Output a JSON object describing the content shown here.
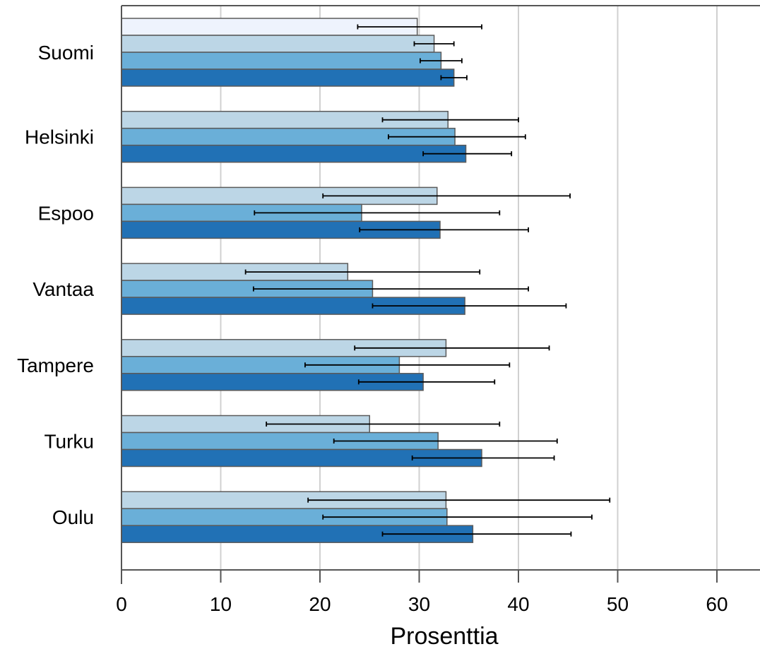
{
  "chart_data": {
    "type": "bar",
    "orientation": "horizontal",
    "xlabel": "Prosenttia",
    "xlim": [
      0,
      64
    ],
    "xticks": [
      0,
      10,
      20,
      30,
      40,
      50,
      60
    ],
    "grid": "vertical",
    "categories": [
      "Suomi",
      "Helsinki",
      "Espoo",
      "Vantaa",
      "Tampere",
      "Turku",
      "Oulu"
    ],
    "series": [
      {
        "color": "#eef3fd",
        "values": [
          29.8,
          null,
          null,
          null,
          null,
          null,
          null
        ],
        "error_low": [
          23.8,
          null,
          null,
          null,
          null,
          null,
          null
        ],
        "error_high": [
          36.3,
          null,
          null,
          null,
          null,
          null,
          null
        ]
      },
      {
        "color": "#bcd6e6",
        "values": [
          31.5,
          32.9,
          31.8,
          22.8,
          32.7,
          25.0,
          32.7
        ],
        "error_low": [
          29.5,
          26.3,
          20.3,
          12.5,
          23.5,
          14.6,
          18.8
        ],
        "error_high": [
          33.5,
          40.0,
          45.2,
          36.1,
          43.1,
          38.1,
          49.2
        ]
      },
      {
        "color": "#6aafd8",
        "values": [
          32.2,
          33.6,
          24.2,
          25.3,
          28.0,
          31.9,
          32.8
        ],
        "error_low": [
          30.1,
          26.9,
          13.4,
          13.3,
          18.5,
          21.4,
          20.3
        ],
        "error_high": [
          34.3,
          40.7,
          38.1,
          41.0,
          39.1,
          43.9,
          47.4
        ]
      },
      {
        "color": "#2171b5",
        "values": [
          33.5,
          34.7,
          32.1,
          34.6,
          30.4,
          36.3,
          35.4
        ],
        "error_low": [
          32.2,
          30.4,
          24.0,
          25.3,
          23.9,
          29.3,
          26.3
        ],
        "error_high": [
          34.8,
          39.3,
          41.0,
          44.8,
          37.6,
          43.6,
          45.3
        ]
      }
    ]
  }
}
